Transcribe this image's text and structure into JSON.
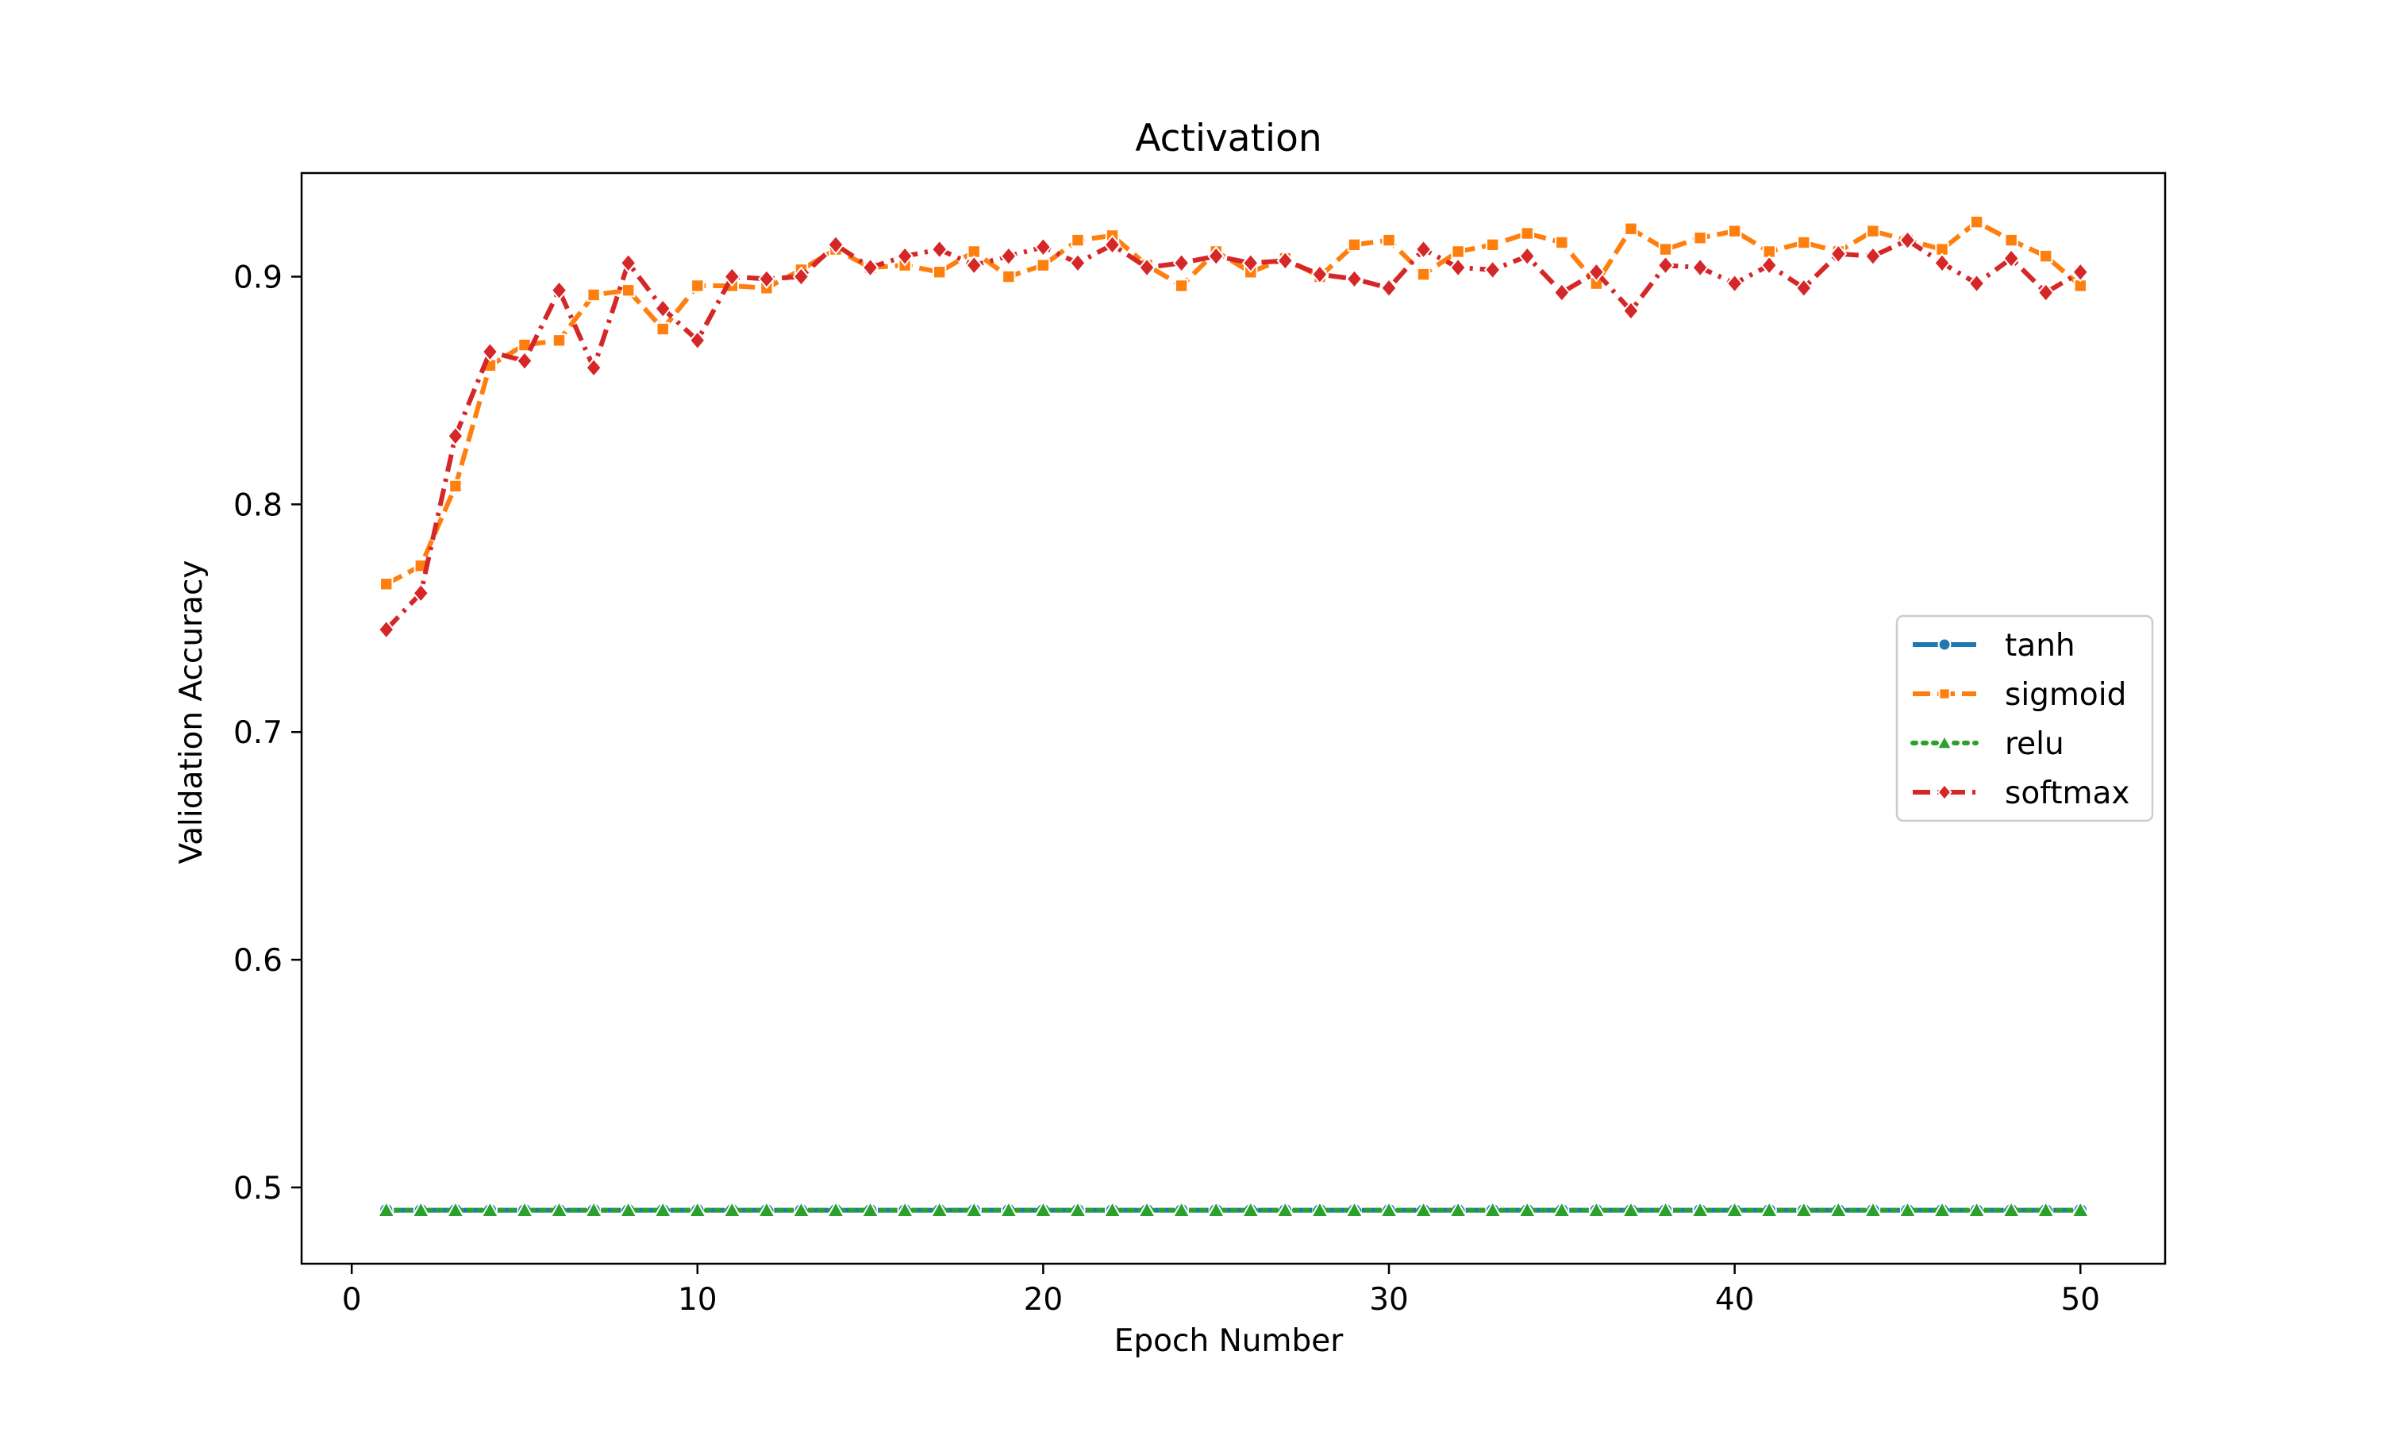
{
  "chart_data": {
    "type": "line",
    "title": "Activation",
    "xlabel": "Epoch Number",
    "ylabel": "Validation Accuracy",
    "xlim": [
      -1.45,
      52.45
    ],
    "ylim": [
      0.4665,
      0.9455
    ],
    "xticks": [
      0,
      10,
      20,
      30,
      40,
      50
    ],
    "yticks": [
      0.5,
      0.6,
      0.7,
      0.8,
      0.9
    ],
    "xtick_labels": [
      "0",
      "10",
      "20",
      "30",
      "40",
      "50"
    ],
    "ytick_labels": [
      "0.5",
      "0.6",
      "0.7",
      "0.8",
      "0.9"
    ],
    "legend_position": "center-right",
    "grid": false,
    "x": [
      1,
      2,
      3,
      4,
      5,
      6,
      7,
      8,
      9,
      10,
      11,
      12,
      13,
      14,
      15,
      16,
      17,
      18,
      19,
      20,
      21,
      22,
      23,
      24,
      25,
      26,
      27,
      28,
      29,
      30,
      31,
      32,
      33,
      34,
      35,
      36,
      37,
      38,
      39,
      40,
      41,
      42,
      43,
      44,
      45,
      46,
      47,
      48,
      49,
      50
    ],
    "series": [
      {
        "name": "tanh",
        "color": "#1f77b4",
        "dash": "solid",
        "marker": "circle",
        "values": [
          0.49,
          0.49,
          0.49,
          0.49,
          0.49,
          0.49,
          0.49,
          0.49,
          0.49,
          0.49,
          0.49,
          0.49,
          0.49,
          0.49,
          0.49,
          0.49,
          0.49,
          0.49,
          0.49,
          0.49,
          0.49,
          0.49,
          0.49,
          0.49,
          0.49,
          0.49,
          0.49,
          0.49,
          0.49,
          0.49,
          0.49,
          0.49,
          0.49,
          0.49,
          0.49,
          0.49,
          0.49,
          0.49,
          0.49,
          0.49,
          0.49,
          0.49,
          0.49,
          0.49,
          0.49,
          0.49,
          0.49,
          0.49,
          0.49,
          0.49
        ]
      },
      {
        "name": "sigmoid",
        "color": "#ff7f0e",
        "dash": "dashed",
        "marker": "square",
        "values": [
          0.765,
          0.773,
          0.808,
          0.861,
          0.87,
          0.872,
          0.892,
          0.894,
          0.877,
          0.896,
          0.896,
          0.895,
          0.903,
          0.912,
          0.904,
          0.905,
          0.902,
          0.911,
          0.9,
          0.905,
          0.916,
          0.918,
          0.905,
          0.896,
          0.911,
          0.902,
          0.908,
          0.9,
          0.914,
          0.916,
          0.901,
          0.911,
          0.914,
          0.919,
          0.915,
          0.897,
          0.921,
          0.912,
          0.917,
          0.92,
          0.911,
          0.915,
          0.911,
          0.92,
          0.916,
          0.912,
          0.924,
          0.916,
          0.909,
          0.896
        ]
      },
      {
        "name": "relu",
        "color": "#2ca02c",
        "dash": "dotted",
        "marker": "triangle",
        "values": [
          0.49,
          0.49,
          0.49,
          0.49,
          0.49,
          0.49,
          0.49,
          0.49,
          0.49,
          0.49,
          0.49,
          0.49,
          0.49,
          0.49,
          0.49,
          0.49,
          0.49,
          0.49,
          0.49,
          0.49,
          0.49,
          0.49,
          0.49,
          0.49,
          0.49,
          0.49,
          0.49,
          0.49,
          0.49,
          0.49,
          0.49,
          0.49,
          0.49,
          0.49,
          0.49,
          0.49,
          0.49,
          0.49,
          0.49,
          0.49,
          0.49,
          0.49,
          0.49,
          0.49,
          0.49,
          0.49,
          0.49,
          0.49,
          0.49,
          0.49
        ]
      },
      {
        "name": "softmax",
        "color": "#d62728",
        "dash": "dashdot",
        "marker": "diamond",
        "values": [
          0.745,
          0.761,
          0.83,
          0.867,
          0.863,
          0.894,
          0.86,
          0.906,
          0.886,
          0.872,
          0.9,
          0.899,
          0.9,
          0.914,
          0.904,
          0.909,
          0.912,
          0.905,
          0.909,
          0.913,
          0.906,
          0.914,
          0.904,
          0.906,
          0.909,
          0.906,
          0.907,
          0.901,
          0.899,
          0.895,
          0.912,
          0.904,
          0.903,
          0.909,
          0.893,
          0.902,
          0.885,
          0.905,
          0.904,
          0.897,
          0.905,
          0.895,
          0.91,
          0.909,
          0.916,
          0.906,
          0.897,
          0.908,
          0.893,
          0.902
        ]
      }
    ]
  }
}
